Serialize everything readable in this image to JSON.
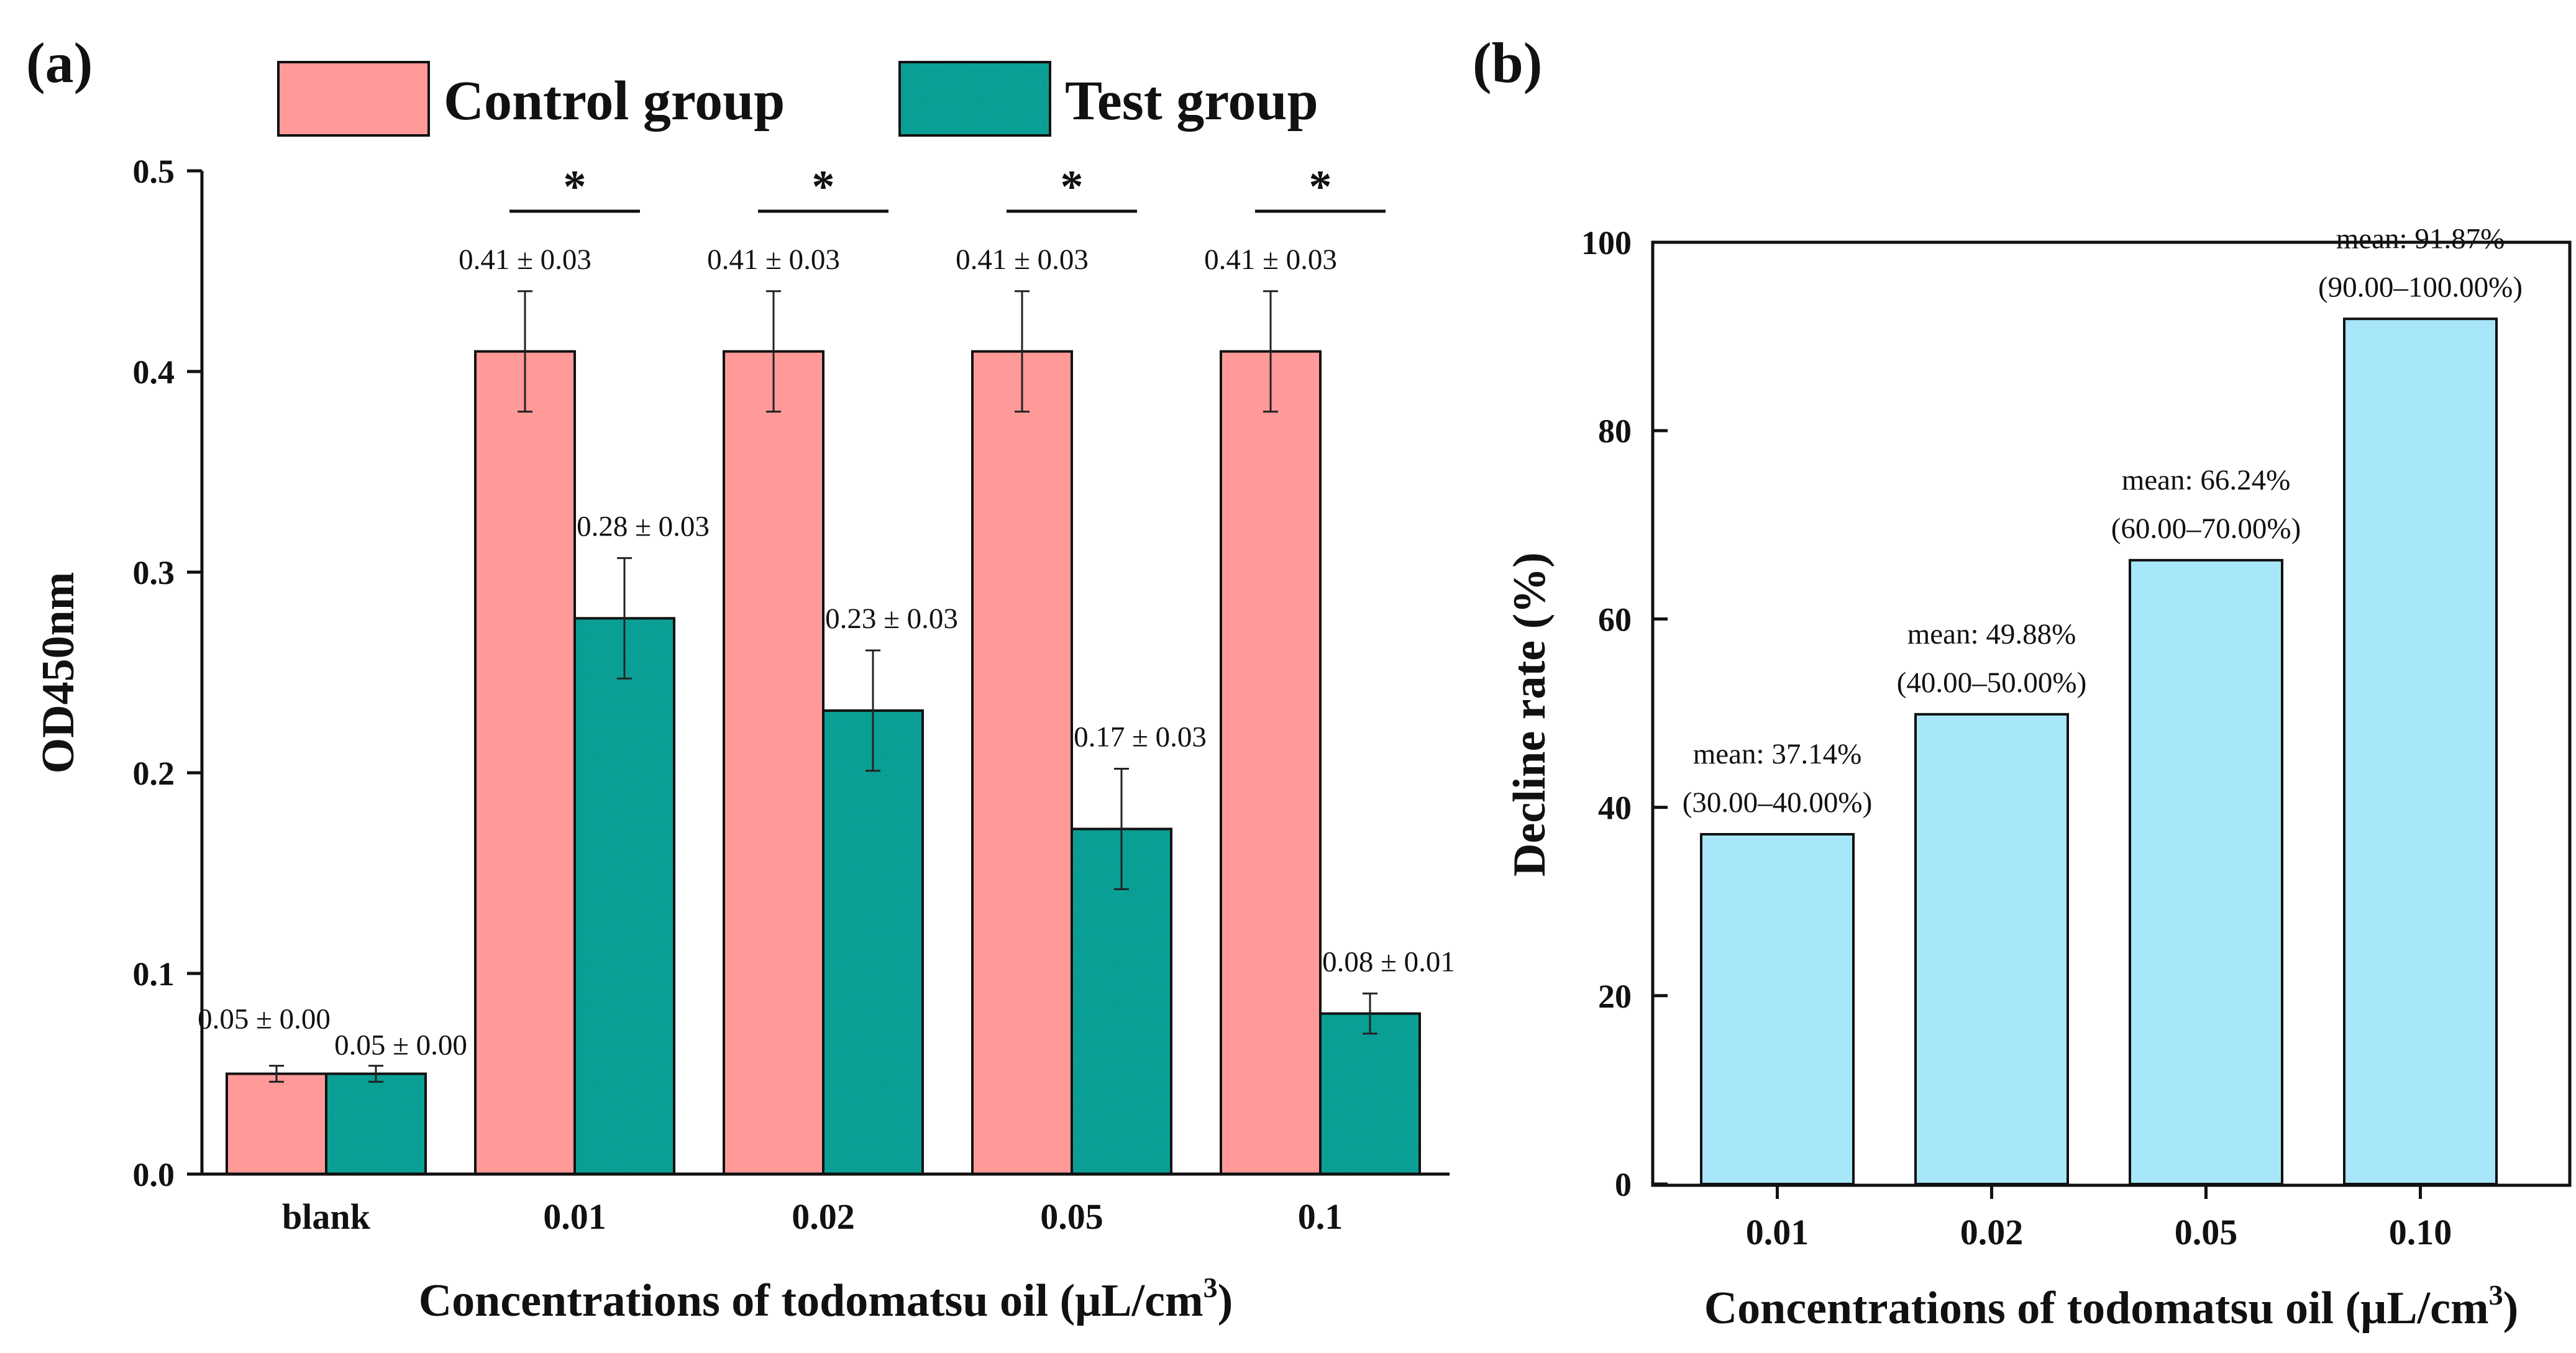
{
  "chart_data": [
    {
      "panel_label": "(a)",
      "type": "bar",
      "xlabel": "Concentrations of todomatsu oil (μL/cm",
      "xlabel_sup": "3",
      "xlabel_suffix": ")",
      "ylabel": "OD450nm",
      "ylim": [
        0,
        0.5
      ],
      "yticks": [
        "0.0",
        "0.1",
        "0.2",
        "0.3",
        "0.4",
        "0.5"
      ],
      "categories": [
        "blank",
        "0.01",
        "0.02",
        "0.05",
        "0.1"
      ],
      "legend_position": "top",
      "series": [
        {
          "name": "Control group",
          "color": "#FF9A99",
          "values": [
            0.05,
            0.41,
            0.41,
            0.41,
            0.41
          ],
          "errors": [
            0.004,
            0.03,
            0.03,
            0.03,
            0.03
          ],
          "labels": [
            "0.05 ± 0.00",
            "0.41 ± 0.03",
            "0.41 ± 0.03",
            "0.41 ± 0.03",
            "0.41 ± 0.03"
          ]
        },
        {
          "name": "Test group",
          "color": "#0AA69C",
          "values": [
            0.05,
            0.277,
            0.231,
            0.172,
            0.08
          ],
          "errors": [
            0.004,
            0.03,
            0.03,
            0.03,
            0.01
          ],
          "labels": [
            "0.05 ± 0.00",
            "0.28 ± 0.03",
            "0.23 ± 0.03",
            "0.17 ± 0.03",
            "0.08 ± 0.01"
          ]
        }
      ],
      "significance": [
        "",
        "*",
        "*",
        "*",
        "*"
      ]
    },
    {
      "panel_label": "(b)",
      "type": "bar",
      "xlabel": "Concentrations of todomatsu oil (μL/cm",
      "xlabel_sup": "3",
      "xlabel_suffix": ")",
      "ylabel": "Decline rate (%)",
      "ylim": [
        0,
        100
      ],
      "yticks": [
        "0",
        "20",
        "40",
        "60",
        "80",
        "100"
      ],
      "categories": [
        "0.01",
        "0.02",
        "0.05",
        "0.10"
      ],
      "color": "#A8E6FA",
      "values": [
        37.14,
        49.88,
        66.24,
        91.87
      ],
      "annotations": [
        [
          "mean: 37.14%",
          "(30.00–40.00%)"
        ],
        [
          "mean: 49.88%",
          "(40.00–50.00%)"
        ],
        [
          "mean: 66.24%",
          "(60.00–70.00%)"
        ],
        [
          "mean: 91.87%",
          "(90.00–100.00%)"
        ]
      ]
    }
  ]
}
